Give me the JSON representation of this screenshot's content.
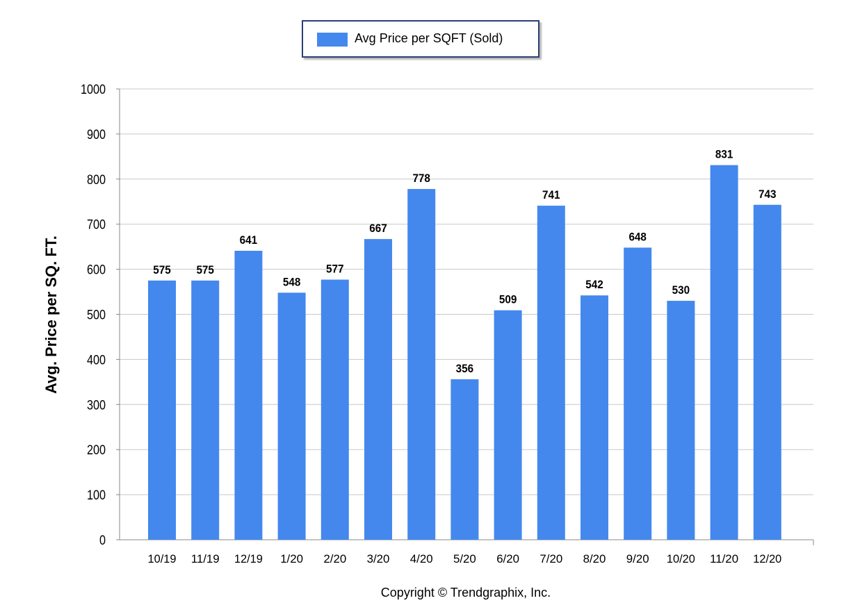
{
  "chart_data": {
    "type": "bar",
    "categories": [
      "10/19",
      "11/19",
      "12/19",
      "1/20",
      "2/20",
      "3/20",
      "4/20",
      "5/20",
      "6/20",
      "7/20",
      "8/20",
      "9/20",
      "10/20",
      "11/20",
      "12/20"
    ],
    "series": [
      {
        "name": "Avg Price per SQFT (Sold)",
        "values": [
          575,
          575,
          641,
          548,
          577,
          667,
          778,
          356,
          509,
          741,
          542,
          648,
          530,
          831,
          743
        ]
      }
    ],
    "data_labels": [
      "575",
      "575",
      "641",
      "548",
      "577",
      "667",
      "778",
      "356",
      "509",
      "741",
      "542",
      "648",
      "530",
      "831",
      "743"
    ],
    "ylabel": "Avg. Price per SQ. FT.",
    "xlabel": "",
    "ylim": [
      0,
      1000
    ],
    "yticks": [
      0,
      100,
      200,
      300,
      400,
      500,
      600,
      700,
      800,
      900,
      1000
    ],
    "grid": true,
    "legend_position": "top-center",
    "bar_color": "#4488ee"
  },
  "footer": {
    "copyright": "Copyright © Trendgraphix, Inc."
  }
}
